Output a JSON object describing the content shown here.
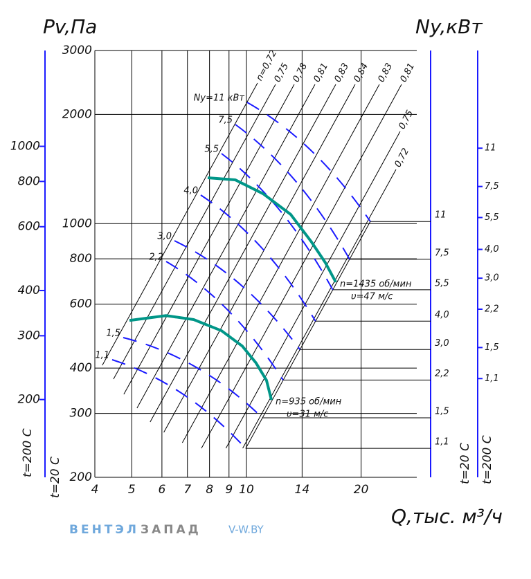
{
  "chart_data": {
    "type": "nomogram",
    "ylabel": "Pv,Па",
    "y2label": "Ny,кВт",
    "xlabel": "Q,тыс. м³/ч",
    "xscale": "log",
    "xlim": [
      4,
      28
    ],
    "xticks": [
      4,
      5,
      6,
      7,
      8,
      9,
      10,
      14,
      20
    ],
    "yscale": "log",
    "ylim": [
      200,
      3000
    ],
    "yticks": [
      3000,
      2000,
      1000,
      800,
      600,
      400,
      300,
      200
    ],
    "y3lim": [
      122,
      1839
    ],
    "y3ticks": [
      1000,
      800,
      600,
      400,
      300,
      200
    ],
    "y2lim": [
      0.82,
      62.4
    ],
    "y2ticks": [
      11,
      {
        "value": 7.5,
        "label": "7,5"
      },
      {
        "value": 5.5,
        "label": "5,5"
      },
      {
        "value": 4.0,
        "label": "4,0"
      },
      {
        "value": 3.0,
        "label": "3,0"
      },
      {
        "value": 2.2,
        "label": "2,2"
      },
      {
        "value": 1.5,
        "label": "1,5"
      },
      {
        "value": 1.1,
        "label": "1,1"
      }
    ],
    "y4lim": [
      0.41,
      29.2
    ],
    "y4ticks": [
      11,
      {
        "value": 7.5,
        "label": "7,5"
      },
      {
        "value": 5.5,
        "label": "5,5"
      },
      {
        "value": 4.0,
        "label": "4,0"
      },
      {
        "value": 3.0,
        "label": "3,0"
      },
      {
        "value": 2.2,
        "label": "2,2"
      },
      {
        "value": 1.5,
        "label": "1,5"
      },
      {
        "value": 1.1,
        "label": "1,1"
      }
    ],
    "temp_labels": {
      "left_outer": "t=200 C",
      "left_inner": "t=20 C",
      "right_inner": "t=20 C",
      "right_outer": "t=200 C"
    },
    "efficiency_labels": [
      "n=0,72",
      "0,75",
      "0,78",
      "0,81",
      "0,83",
      "0,84",
      "0,83",
      "0,81",
      "0,75",
      "0,72"
    ],
    "power_labels": [
      "Ny=11 кВт",
      "7,5",
      "5,5",
      "4,0",
      "3,0",
      "2,2",
      "1,5",
      "1,1"
    ],
    "series": [
      {
        "name": "n=1435 об/мин",
        "speed": "υ=47 м/с",
        "color": "#009688",
        "x": [
          7.91,
          9.35,
          11.06,
          13.07,
          14.82,
          16.12,
          17.16
        ],
        "values": [
          1338,
          1320,
          1209,
          1060,
          890,
          780,
          690
        ]
      },
      {
        "name": "n=935 об/мин",
        "speed": "υ=31 м/с",
        "color": "#009688",
        "x": [
          4.93,
          6.15,
          7.27,
          8.6,
          9.75,
          10.6,
          11.29,
          11.63
        ],
        "values": [
          541,
          558,
          544,
          507,
          460,
          413,
          370,
          327
        ]
      }
    ]
  },
  "brand": {
    "part1": "ВЕНТЭЛ",
    "part2": "ЗАПАД",
    "site": "V-W.BY"
  }
}
